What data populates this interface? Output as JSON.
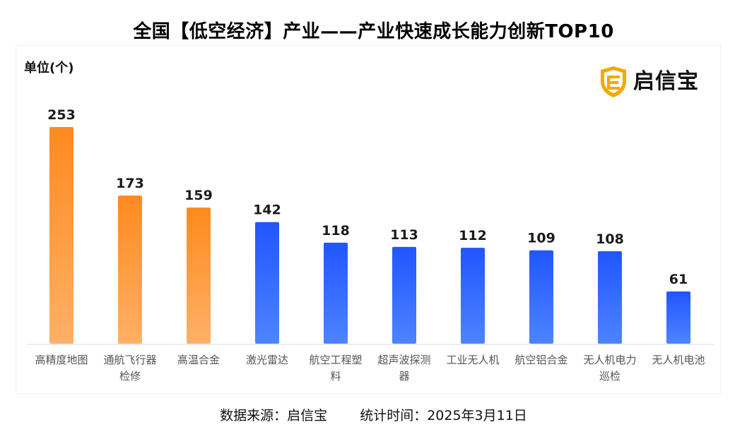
{
  "title": "全国【低空经济】产业——产业快速成长能力创新TOP10",
  "unit_label": "单位(个)",
  "logo": {
    "text": "启信宝",
    "icon": "shield-logo-icon",
    "color": "#f5a800"
  },
  "footer": {
    "source": "数据来源：启信宝",
    "stat_time": "统计时间：2025年3月11日"
  },
  "colors": {
    "orange_top": "#ff8a1e",
    "orange_bottom": "#ffb067",
    "blue_top": "#2155ff",
    "blue_bottom": "#4d84ff"
  },
  "chart_data": {
    "type": "bar",
    "title": "全国【低空经济】产业——产业快速成长能力创新TOP10",
    "ylabel": "单位(个)",
    "categories": [
      "高精度地图",
      "通航飞行器检修",
      "高温合金",
      "激光雷达",
      "航空工程塑料",
      "超声波探测器",
      "工业无人机",
      "航空铝合金",
      "无人机电力巡检",
      "无人机电池"
    ],
    "category_lines": [
      [
        "高精度地图"
      ],
      [
        "通航飞行器",
        "检修"
      ],
      [
        "高温合金"
      ],
      [
        "激光雷达"
      ],
      [
        "航空工程塑",
        "料"
      ],
      [
        "超声波探测",
        "器"
      ],
      [
        "工业无人机"
      ],
      [
        "航空铝合金"
      ],
      [
        "无人机电力",
        "巡检"
      ],
      [
        "无人机电池"
      ]
    ],
    "values": [
      253,
      173,
      159,
      142,
      118,
      113,
      112,
      109,
      108,
      61
    ],
    "highlight_top": 3,
    "ylim": [
      0,
      253
    ],
    "grid": false,
    "legend": "none"
  }
}
